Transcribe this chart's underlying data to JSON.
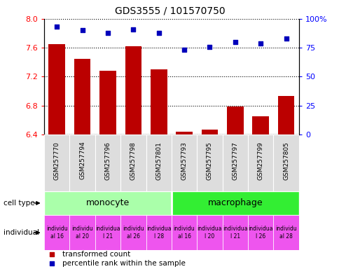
{
  "title": "GDS3555 / 101570750",
  "samples": [
    "GSM257770",
    "GSM257794",
    "GSM257796",
    "GSM257798",
    "GSM257801",
    "GSM257793",
    "GSM257795",
    "GSM257797",
    "GSM257799",
    "GSM257805"
  ],
  "transformed_counts": [
    7.65,
    7.45,
    7.28,
    7.62,
    7.3,
    6.44,
    6.47,
    6.79,
    6.65,
    6.93
  ],
  "percentile_ranks": [
    93,
    90,
    88,
    91,
    88,
    73,
    76,
    80,
    79,
    83
  ],
  "cell_types": [
    "monocyte",
    "monocyte",
    "monocyte",
    "monocyte",
    "monocyte",
    "macrophage",
    "macrophage",
    "macrophage",
    "macrophage",
    "macrophage"
  ],
  "individual_labels": [
    "individu\nal 16",
    "individu\nal 20",
    "individua\nl 21",
    "individu\nal 26",
    "individua\nl 28",
    "individu\nal 16",
    "individua\nl 20",
    "individua\nl 21",
    "individua\nl 26",
    "individu\nal 28"
  ],
  "ylim_left": [
    6.4,
    8.0
  ],
  "ylim_right": [
    0,
    100
  ],
  "yticks_left": [
    6.4,
    6.8,
    7.2,
    7.6,
    8.0
  ],
  "yticks_right": [
    0,
    25,
    50,
    75,
    100
  ],
  "ytick_labels_right": [
    "0",
    "25",
    "50",
    "75",
    "100%"
  ],
  "bar_color": "#bb0000",
  "dot_color": "#0000bb",
  "monocyte_color": "#aaffaa",
  "macrophage_color": "#33ee33",
  "individual_color": "#ee55ee",
  "sample_box_color": "#dddddd",
  "background_color": "#ffffff"
}
